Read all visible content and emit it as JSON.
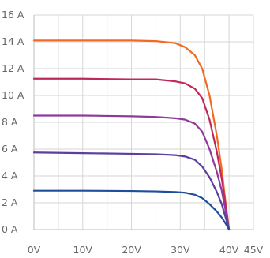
{
  "chart_data": {
    "type": "line",
    "title": "",
    "xlabel": "",
    "ylabel": "",
    "xlim": [
      0,
      45
    ],
    "ylim": [
      0,
      16
    ],
    "grid": true,
    "x_ticks": [
      0,
      5,
      10,
      15,
      20,
      25,
      30,
      35,
      40,
      45
    ],
    "y_ticks": [
      0,
      2,
      4,
      6,
      8,
      10,
      12,
      14,
      16
    ],
    "x_tick_labels": [
      "0V",
      "10V",
      "20V",
      "30V",
      "40V",
      "45V"
    ],
    "x_tick_label_values": [
      0,
      10,
      20,
      30,
      40,
      45
    ],
    "y_tick_labels": [
      "0 A",
      "2 A",
      "4 A",
      "6 A",
      "8 A",
      "10 A",
      "12 A",
      "14 A",
      "16 A"
    ],
    "y_tick_label_values": [
      0,
      2,
      4,
      6,
      8,
      10,
      12,
      14,
      16
    ],
    "series": [
      {
        "color": "#F26A21",
        "points": [
          [
            0,
            14.1
          ],
          [
            10,
            14.1
          ],
          [
            20,
            14.1
          ],
          [
            25,
            14.05
          ],
          [
            29,
            13.9
          ],
          [
            31,
            13.6
          ],
          [
            33,
            13.0
          ],
          [
            34.5,
            12.0
          ],
          [
            36,
            10.0
          ],
          [
            37.5,
            7.0
          ],
          [
            38.5,
            4.5
          ],
          [
            39.3,
            2.0
          ],
          [
            40,
            0
          ]
        ]
      },
      {
        "color": "#C0285A",
        "points": [
          [
            0,
            11.25
          ],
          [
            10,
            11.25
          ],
          [
            20,
            11.2
          ],
          [
            25,
            11.2
          ],
          [
            29,
            11.05
          ],
          [
            31,
            10.9
          ],
          [
            33,
            10.5
          ],
          [
            34.5,
            9.8
          ],
          [
            36,
            8.2
          ],
          [
            37.5,
            5.8
          ],
          [
            38.5,
            3.8
          ],
          [
            39.3,
            1.8
          ],
          [
            40,
            0
          ]
        ]
      },
      {
        "color": "#8E3A9C",
        "points": [
          [
            0,
            8.5
          ],
          [
            10,
            8.5
          ],
          [
            20,
            8.45
          ],
          [
            25,
            8.4
          ],
          [
            29,
            8.3
          ],
          [
            31,
            8.2
          ],
          [
            33,
            7.9
          ],
          [
            34.5,
            7.3
          ],
          [
            36,
            6.0
          ],
          [
            37.5,
            4.3
          ],
          [
            38.5,
            2.9
          ],
          [
            39.3,
            1.4
          ],
          [
            40,
            0
          ]
        ]
      },
      {
        "color": "#5B3E9E",
        "points": [
          [
            0,
            5.75
          ],
          [
            10,
            5.7
          ],
          [
            20,
            5.65
          ],
          [
            25,
            5.62
          ],
          [
            29,
            5.55
          ],
          [
            31,
            5.45
          ],
          [
            33,
            5.2
          ],
          [
            34.5,
            4.7
          ],
          [
            36,
            3.9
          ],
          [
            37.5,
            2.8
          ],
          [
            38.5,
            1.9
          ],
          [
            39.3,
            0.9
          ],
          [
            40,
            0
          ]
        ]
      },
      {
        "color": "#1F4E9A",
        "points": [
          [
            0,
            2.9
          ],
          [
            10,
            2.9
          ],
          [
            20,
            2.88
          ],
          [
            25,
            2.85
          ],
          [
            29,
            2.8
          ],
          [
            31,
            2.75
          ],
          [
            33,
            2.6
          ],
          [
            34.5,
            2.35
          ],
          [
            36,
            1.9
          ],
          [
            37.5,
            1.35
          ],
          [
            38.5,
            0.9
          ],
          [
            39.3,
            0.45
          ],
          [
            40,
            0
          ]
        ]
      }
    ]
  }
}
